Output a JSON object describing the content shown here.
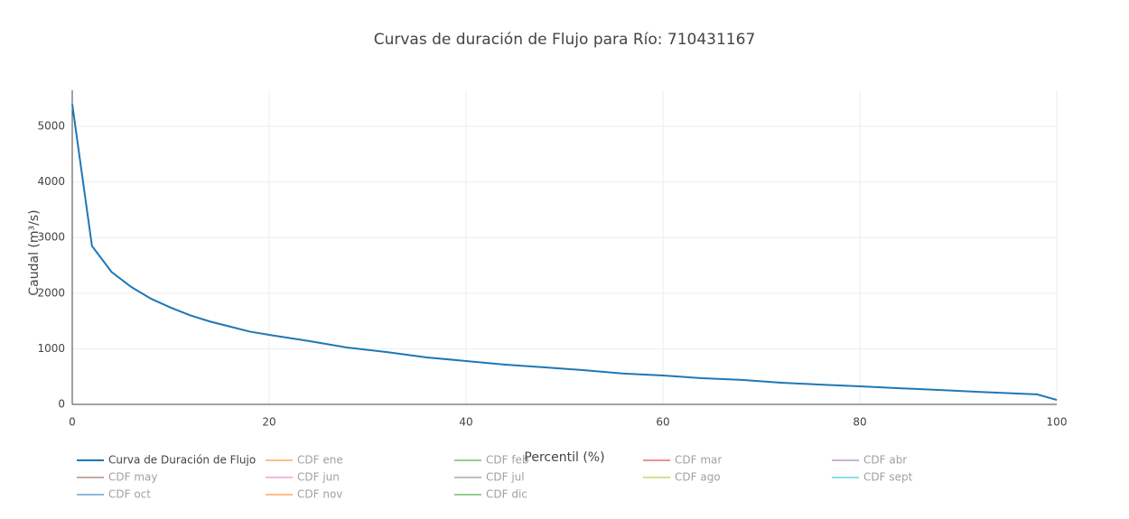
{
  "chart_data": {
    "type": "line",
    "title": "Curvas de duración de Flujo para Río: 710431167",
    "x_label": "Percentil (%)",
    "y_label": "Caudal (m³/s)",
    "x": [
      0,
      2,
      4,
      6,
      8,
      10,
      12,
      14,
      16,
      18,
      20,
      24,
      28,
      32,
      36,
      40,
      44,
      48,
      52,
      56,
      60,
      64,
      68,
      72,
      76,
      80,
      84,
      88,
      92,
      96,
      98,
      100
    ],
    "series": [
      {
        "name": "Curva de Duración de Flujo",
        "color": "#1f77b4",
        "values": [
          5400,
          2850,
          2380,
          2110,
          1900,
          1740,
          1600,
          1490,
          1400,
          1310,
          1250,
          1140,
          1020,
          940,
          845,
          780,
          715,
          665,
          615,
          555,
          520,
          470,
          440,
          390,
          355,
          325,
          290,
          260,
          225,
          195,
          180,
          80
        ]
      },
      {
        "name": "CDF ene",
        "color": "#ff7f0e",
        "visible": "legendonly"
      },
      {
        "name": "CDF feb",
        "color": "#2ca02c",
        "visible": "legendonly"
      },
      {
        "name": "CDF mar",
        "color": "#d62728",
        "visible": "legendonly"
      },
      {
        "name": "CDF abr",
        "color": "#9467bd",
        "visible": "legendonly"
      },
      {
        "name": "CDF may",
        "color": "#8c564b",
        "visible": "legendonly"
      },
      {
        "name": "CDF jun",
        "color": "#e377c2",
        "visible": "legendonly"
      },
      {
        "name": "CDF jul",
        "color": "#7f7f7f",
        "visible": "legendonly"
      },
      {
        "name": "CDF ago",
        "color": "#bcbd22",
        "visible": "legendonly"
      },
      {
        "name": "CDF sept",
        "color": "#17becf",
        "visible": "legendonly"
      },
      {
        "name": "CDF oct",
        "color": "#1f77b4",
        "visible": "legendonly"
      },
      {
        "name": "CDF nov",
        "color": "#ff7f0e",
        "visible": "legendonly"
      },
      {
        "name": "CDF dic",
        "color": "#2ca02c",
        "visible": "legendonly"
      }
    ],
    "xlim": [
      0,
      100
    ],
    "xticks": [
      0,
      20,
      40,
      60,
      80,
      100
    ],
    "ylim": [
      0,
      5650
    ],
    "yticks": [
      0,
      1000,
      2000,
      3000,
      4000,
      5000
    ],
    "grid": true
  }
}
